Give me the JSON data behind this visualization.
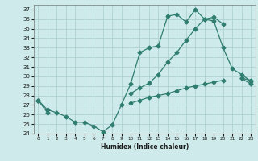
{
  "xlabel": "Humidex (Indice chaleur)",
  "ylabel": "",
  "background_color": "#ceeaea",
  "line_color": "#2e7d6e",
  "x": [
    0,
    1,
    2,
    3,
    4,
    5,
    6,
    7,
    8,
    9,
    10,
    11,
    12,
    13,
    14,
    15,
    16,
    17,
    18,
    19,
    20,
    21,
    22,
    23
  ],
  "line1": [
    27.5,
    26.5,
    26.2,
    25.8,
    25.2,
    25.2,
    24.8,
    24.2,
    24.9,
    27.0,
    29.2,
    32.5,
    33.0,
    33.2,
    36.3,
    36.5,
    35.7,
    37.0,
    36.0,
    35.8,
    33.0,
    30.8,
    30.2,
    29.5
  ],
  "line2": [
    27.5,
    null,
    null,
    null,
    null,
    null,
    null,
    null,
    null,
    null,
    28.2,
    28.8,
    29.3,
    30.2,
    31.5,
    32.5,
    33.8,
    35.0,
    36.0,
    36.2,
    35.5,
    null,
    29.8,
    29.2
  ],
  "line3": [
    27.5,
    26.2,
    null,
    null,
    null,
    null,
    null,
    null,
    null,
    null,
    27.2,
    27.5,
    27.8,
    28.0,
    28.2,
    28.5,
    28.8,
    29.0,
    29.2,
    29.4,
    29.6,
    null,
    29.8,
    29.6
  ],
  "ylim": [
    24,
    37.5
  ],
  "xlim": [
    -0.5,
    23.5
  ],
  "yticks": [
    24,
    25,
    26,
    27,
    28,
    29,
    30,
    31,
    32,
    33,
    34,
    35,
    36,
    37
  ],
  "xticks": [
    0,
    1,
    2,
    3,
    4,
    5,
    6,
    7,
    8,
    9,
    10,
    11,
    12,
    13,
    14,
    15,
    16,
    17,
    18,
    19,
    20,
    21,
    22,
    23
  ],
  "marker": "D",
  "markersize": 2.5,
  "linewidth": 0.9
}
